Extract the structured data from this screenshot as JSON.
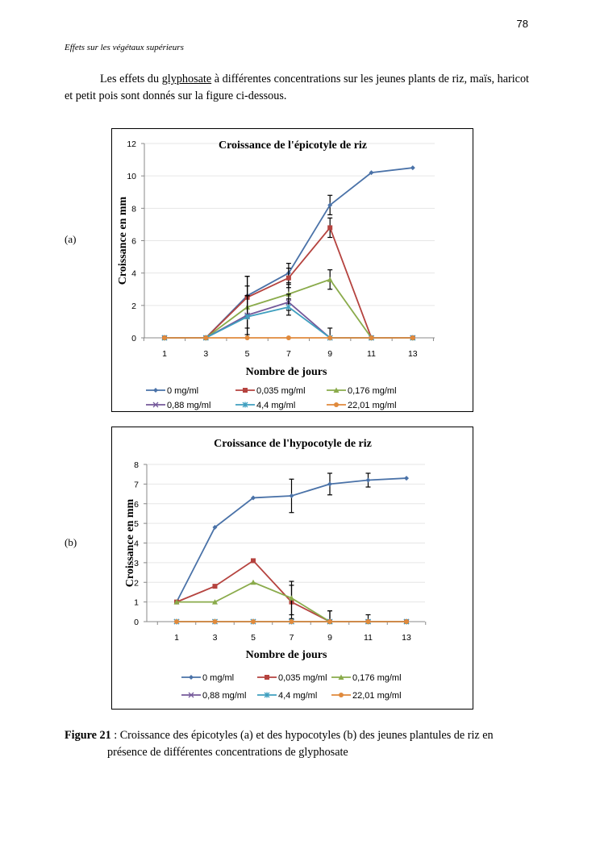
{
  "page": {
    "number": "78",
    "running_head": "Effets sur les végétaux supérieurs",
    "intro_before": "Les effets du ",
    "intro_link": "glyphosate",
    "intro_after": " à différentes concentrations sur les jeunes plants de riz, maïs, haricot et petit pois sont donnés sur la figure ci-dessous.",
    "panel_a_label": "(a)",
    "panel_b_label": "(b)",
    "caption_label": "Figure 21",
    "caption_sep": " : ",
    "caption_line1": "Croissance des épicotyles (a) et des hypocotyles (b) des jeunes plantules de riz en",
    "caption_line2": "présence de différentes concentrations de glyphosate"
  },
  "colors": {
    "0 mg/ml": "#4a72a8",
    "0,035 mg/ml": "#b5433f",
    "0,176 mg/ml": "#8aab4b",
    "0,88 mg/ml": "#74589a",
    "4,4 mg/ml": "#3f9fbf",
    "22,01 mg/ml": "#e08a3c"
  },
  "chart_data": [
    {
      "type": "line",
      "id": "a",
      "title": "Croissance de l'épicotyle de riz",
      "xlabel": "Nombre de jours",
      "ylabel": "Croissance en mm",
      "x": [
        1,
        3,
        5,
        7,
        9,
        11,
        13
      ],
      "xticks": [
        "1",
        "3",
        "5",
        "7",
        "9",
        "11",
        "13"
      ],
      "yticks": [
        "0",
        "2",
        "4",
        "6",
        "8",
        "10",
        "12"
      ],
      "ylim": [
        0,
        12
      ],
      "grid": true,
      "legend": "bottom",
      "series": [
        {
          "name": "0 mg/ml",
          "marker": "diamond",
          "values": [
            0,
            0,
            2.6,
            4.0,
            8.2,
            10.2,
            10.5
          ],
          "errors": [
            0,
            0,
            1.2,
            0.6,
            0.6,
            0,
            0
          ]
        },
        {
          "name": "0,035 mg/ml",
          "marker": "square",
          "values": [
            0,
            0,
            2.5,
            3.7,
            6.8,
            0,
            0
          ],
          "errors": [
            0,
            0,
            1.3,
            0.6,
            0.6,
            0,
            0
          ]
        },
        {
          "name": "0,176 mg/ml",
          "marker": "triangle",
          "values": [
            0,
            0,
            1.9,
            2.7,
            3.6,
            0,
            0
          ],
          "errors": [
            0,
            0,
            1.3,
            0.6,
            0.6,
            0,
            0
          ]
        },
        {
          "name": "0,88 mg/ml",
          "marker": "x",
          "values": [
            0,
            0,
            1.4,
            2.2,
            0,
            0,
            0
          ],
          "errors": [
            0,
            0,
            1.2,
            0.5,
            0.6,
            0,
            0
          ]
        },
        {
          "name": "4,4 mg/ml",
          "marker": "star",
          "values": [
            0,
            0,
            1.3,
            1.9,
            0,
            0,
            0
          ],
          "errors": [
            0,
            0,
            1.3,
            0.5,
            0,
            0,
            0
          ]
        },
        {
          "name": "22,01 mg/ml",
          "marker": "circle",
          "values": [
            0,
            0,
            0,
            0,
            0,
            0,
            0
          ],
          "errors": [
            0,
            0,
            0,
            0,
            0,
            0,
            0
          ]
        }
      ]
    },
    {
      "type": "line",
      "id": "b",
      "title": "Croissance de l'hypocotyle de riz",
      "xlabel": "Nombre de jours",
      "ylabel": "Croissance en mm",
      "x": [
        1,
        3,
        5,
        7,
        9,
        11,
        13
      ],
      "xticks": [
        "1",
        "3",
        "5",
        "7",
        "9",
        "11",
        "13"
      ],
      "yticks": [
        "0",
        "1",
        "2",
        "3",
        "4",
        "5",
        "6",
        "7",
        "8"
      ],
      "ylim": [
        0,
        8
      ],
      "grid": true,
      "legend": "bottom",
      "series": [
        {
          "name": "0 mg/ml",
          "marker": "diamond",
          "values": [
            1,
            4.8,
            6.3,
            6.4,
            7.0,
            7.2,
            7.3
          ],
          "errors": [
            0,
            0,
            0,
            0.85,
            0.55,
            0.35,
            0
          ]
        },
        {
          "name": "0,035 mg/ml",
          "marker": "square",
          "values": [
            1,
            1.8,
            3.1,
            1.0,
            0,
            0,
            0
          ],
          "errors": [
            0,
            0,
            0,
            0.85,
            0.55,
            0.35,
            0
          ]
        },
        {
          "name": "0,176 mg/ml",
          "marker": "triangle",
          "values": [
            1,
            1,
            2.0,
            1.2,
            0,
            0,
            0
          ],
          "errors": [
            0,
            0,
            0,
            0.85,
            0.55,
            0,
            0
          ]
        },
        {
          "name": "0,88 mg/ml",
          "marker": "x",
          "values": [
            0,
            0,
            0,
            0,
            0,
            0,
            0
          ],
          "errors": [
            0,
            0,
            0,
            0,
            0,
            0,
            0
          ]
        },
        {
          "name": "4,4 mg/ml",
          "marker": "star",
          "values": [
            0,
            0,
            0,
            0,
            0,
            0,
            0
          ],
          "errors": [
            0,
            0,
            0,
            0,
            0,
            0,
            0
          ]
        },
        {
          "name": "22,01 mg/ml",
          "marker": "circle",
          "values": [
            0,
            0,
            0,
            0,
            0,
            0,
            0
          ],
          "errors": [
            0,
            0,
            0,
            0,
            0,
            0,
            0
          ]
        }
      ]
    }
  ]
}
